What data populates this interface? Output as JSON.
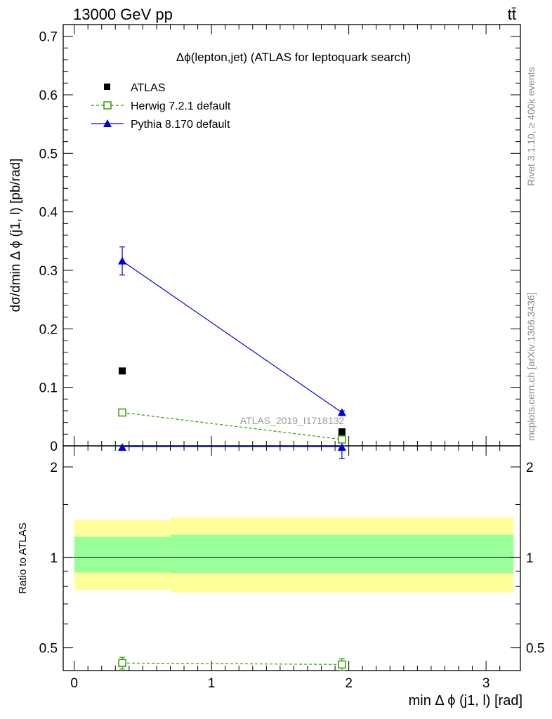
{
  "header": {
    "energy_label": "13000 GeV pp",
    "process_label": "tt̄"
  },
  "side_labels": {
    "rivet": "Rivet 3.1.10, ≥ 400k events",
    "mcplots": "mcplots.cern.ch [arXiv:1306.3436]"
  },
  "chart_data": [
    {
      "type": "scatter",
      "panel": "main",
      "title": "Δϕ(lepton,jet) (ATLAS for leptoquark search)",
      "watermark": "ATLAS_2019_I1718132",
      "ylabel": "dσ/dmin Δ ϕ (j1, l) [pb/rad]",
      "xlim": [
        -0.08,
        3.25
      ],
      "ylim": [
        0,
        0.72
      ],
      "y_ticks": [
        "0",
        "0.1",
        "0.2",
        "0.3",
        "0.4",
        "0.5",
        "0.6",
        "0.7"
      ],
      "legend": [
        "ATLAS",
        "Herwig 7.2.1 default",
        "Pythia 8.170 default"
      ],
      "legend_position": "top-left",
      "series": [
        {
          "name": "ATLAS",
          "color": "#000000",
          "marker": "filled-square",
          "x": [
            0.35,
            1.95
          ],
          "y": [
            0.128,
            0.024
          ]
        },
        {
          "name": "Herwig 7.2.1 default",
          "color": "#339900",
          "marker": "open-square",
          "line": "dashed",
          "x": [
            0.35,
            1.95
          ],
          "y": [
            0.057,
            0.011
          ],
          "yerr": [
            0.002,
            0.001
          ]
        },
        {
          "name": "Pythia 8.170 default",
          "color": "#0000dd",
          "marker": "filled-triangle",
          "line": "solid",
          "x": [
            0.35,
            1.95
          ],
          "y": [
            0.316,
            0.057
          ],
          "yerr": [
            0.024,
            0.003
          ]
        }
      ]
    },
    {
      "type": "scatter",
      "panel": "ratio",
      "ylabel": "Ratio to ATLAS",
      "xlabel": "min Δ ϕ (j1, l) [rad]",
      "log_y": true,
      "ylim": [
        0.42,
        2.35
      ],
      "x_ticks": [
        "0",
        "1",
        "2",
        "3"
      ],
      "y_ticks": [
        "0.5",
        "1",
        "2"
      ],
      "bands": [
        {
          "x": [
            0.0,
            0.7
          ],
          "inner": [
            0.89,
            1.17
          ],
          "outer": [
            0.78,
            1.33
          ]
        },
        {
          "x": [
            0.7,
            3.2
          ],
          "inner": [
            0.885,
            1.19
          ],
          "outer": [
            0.765,
            1.36
          ]
        }
      ],
      "reference": 1.0,
      "series": [
        {
          "name": "Herwig 7.2.1 default",
          "color": "#339900",
          "marker": "open-square",
          "line": "dashed",
          "x": [
            0.35,
            1.95
          ],
          "y": [
            0.445,
            0.44
          ],
          "yerr": [
            0.02,
            0.02
          ]
        },
        {
          "name": "Pythia 8.170 default",
          "color": "#0000dd",
          "marker": "filled-triangle",
          "line": "solid",
          "x": [
            0.35,
            1.95
          ],
          "y": [
            2.47,
            2.38
          ],
          "yerr": [
            0.19,
            0.25
          ]
        }
      ]
    }
  ]
}
